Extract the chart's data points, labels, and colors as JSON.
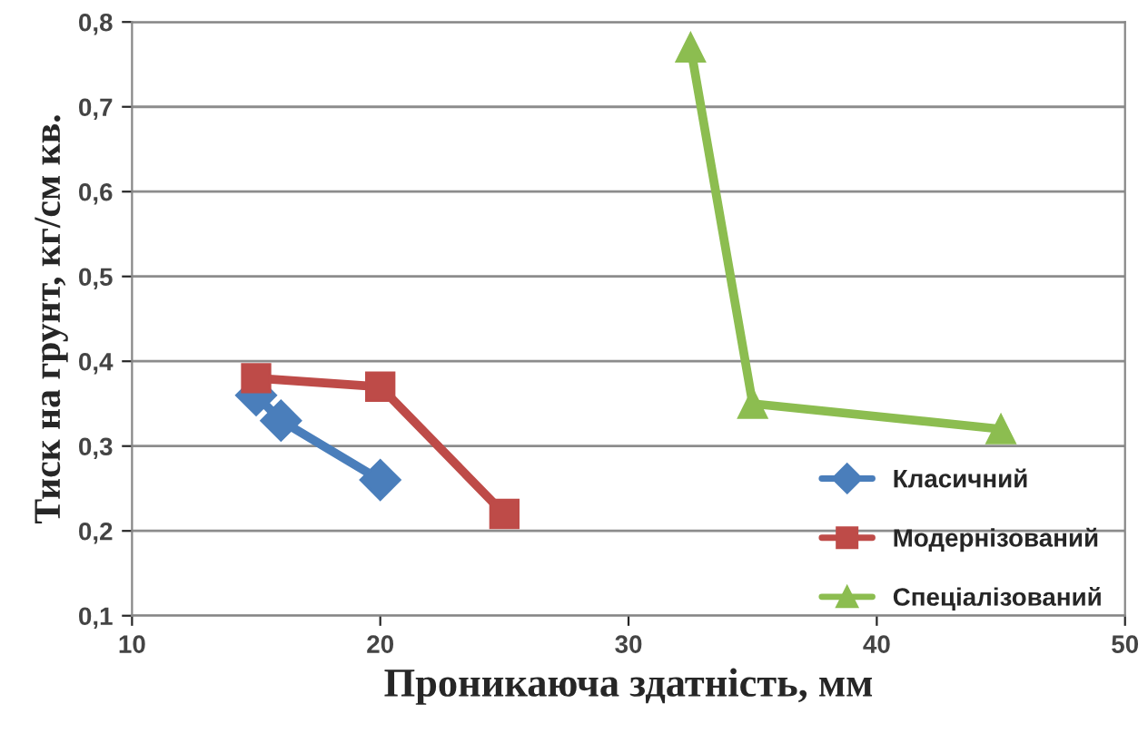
{
  "chart_data": {
    "type": "line",
    "xlabel": "Проникаюча здатність, мм",
    "ylabel": "Тиск на грунт, кг/см кв.",
    "series": [
      {
        "name": "Класичний",
        "color": "#4a7ebb",
        "marker": "diamond",
        "x": [
          15,
          16,
          20
        ],
        "values": [
          0.36,
          0.33,
          0.26
        ]
      },
      {
        "name": "Модернізований",
        "color": "#be4b48",
        "marker": "square",
        "x": [
          15,
          20,
          25
        ],
        "values": [
          0.38,
          0.37,
          0.22
        ]
      },
      {
        "name": "Спеціалізований",
        "color": "#8cbd50",
        "marker": "triangle",
        "x": [
          32.5,
          35,
          45
        ],
        "values": [
          0.77,
          0.35,
          0.32
        ]
      }
    ],
    "xlim": [
      10,
      50
    ],
    "xticks": [
      10,
      20,
      30,
      40,
      50
    ],
    "ylim": [
      0.1,
      0.8
    ],
    "yticks": [
      {
        "value": 0.1,
        "label": "0,1"
      },
      {
        "value": 0.2,
        "label": "0,2"
      },
      {
        "value": 0.3,
        "label": "0,3"
      },
      {
        "value": 0.4,
        "label": "0,4"
      },
      {
        "value": 0.5,
        "label": "0,5"
      },
      {
        "value": 0.6,
        "label": "0,6"
      },
      {
        "value": 0.7,
        "label": "0,7"
      },
      {
        "value": 0.8,
        "label": "0,8"
      }
    ],
    "grid": "y",
    "legend": "bottom right",
    "line_style": "solid"
  }
}
